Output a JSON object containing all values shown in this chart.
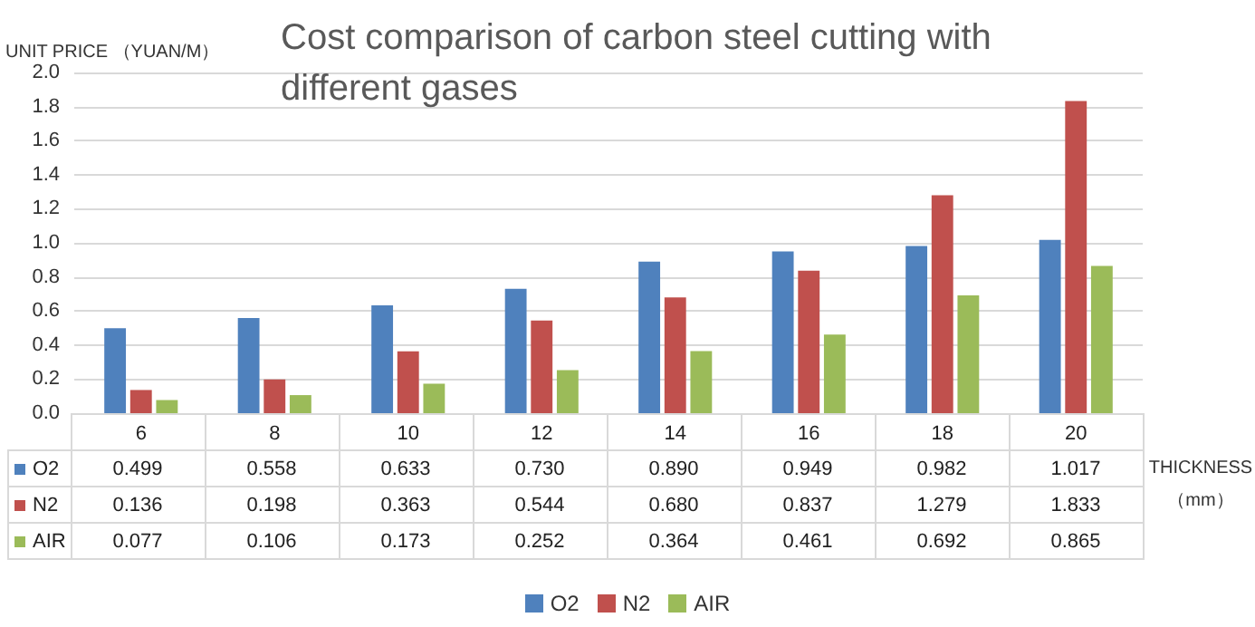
{
  "chart_data": {
    "type": "bar",
    "title": "Cost comparison of carbon steel cutting with different gases",
    "ylabel": "UNIT PRICE （YUAN/M）",
    "xlabel": "THICKNESS （mm）",
    "categories": [
      "6",
      "8",
      "10",
      "12",
      "14",
      "16",
      "18",
      "20"
    ],
    "series": [
      {
        "name": "O2",
        "color": "#4f81bd",
        "values": [
          0.499,
          0.558,
          0.633,
          0.73,
          0.89,
          0.949,
          0.982,
          1.017
        ],
        "value_labels": [
          "0.499",
          "0.558",
          "0.633",
          "0.730",
          "0.890",
          "0.949",
          "0.982",
          "1.017"
        ]
      },
      {
        "name": "N2",
        "color": "#c0504d",
        "values": [
          0.136,
          0.198,
          0.363,
          0.544,
          0.68,
          0.837,
          1.279,
          1.833
        ],
        "value_labels": [
          "0.136",
          "0.198",
          "0.363",
          "0.544",
          "0.680",
          "0.837",
          "1.279",
          "1.833"
        ]
      },
      {
        "name": "AIR",
        "color": "#9bbb59",
        "values": [
          0.077,
          0.106,
          0.173,
          0.252,
          0.364,
          0.461,
          0.692,
          0.865
        ],
        "value_labels": [
          "0.077",
          "0.106",
          "0.173",
          "0.252",
          "0.364",
          "0.461",
          "0.692",
          "0.865"
        ]
      }
    ],
    "ylim": [
      0,
      2
    ],
    "yticks": [
      {
        "value": 0,
        "label": "0.0"
      },
      {
        "value": 0.2,
        "label": "0.2"
      },
      {
        "value": 0.4,
        "label": "0.4"
      },
      {
        "value": 0.6,
        "label": "0.6"
      },
      {
        "value": 0.8,
        "label": "0.8"
      },
      {
        "value": 1,
        "label": "1.0"
      },
      {
        "value": 1.2,
        "label": "1.2"
      },
      {
        "value": 1.4,
        "label": "1.4"
      },
      {
        "value": 1.6,
        "label": "1.6"
      },
      {
        "value": 1.8,
        "label": "1.8"
      },
      {
        "value": 2,
        "label": "2.0"
      }
    ],
    "grid": "y",
    "legend": "bottom"
  }
}
